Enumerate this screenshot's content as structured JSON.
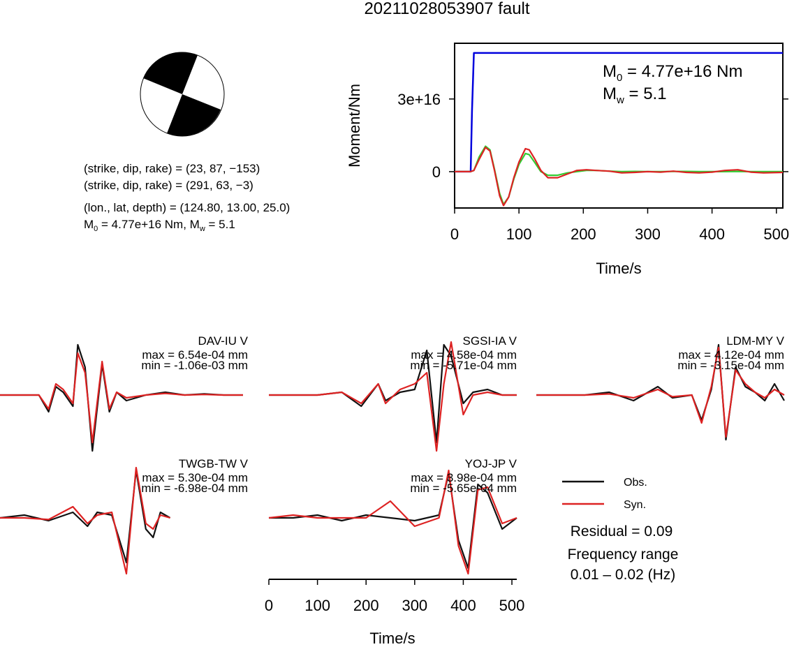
{
  "title": "20211028053907 fault",
  "mechanism": {
    "lines": [
      "(strike, dip, rake) = (23, 87, −153)",
      "(strike, dip, rake) = (291, 63, −3)",
      "(lon., lat, depth) = (124.80, 13.00, 25.0)"
    ],
    "m0_label": "M",
    "m0_sub": "0",
    "m0_rest": " = 4.77e+16 Nm, M",
    "mw_sub": "w",
    "mw_rest": " = 5.1"
  },
  "chart_data": [
    {
      "type": "line",
      "name": "moment-rate-panel",
      "xlabel": "Time/s",
      "ylabel": "Moment/Nm",
      "xlim": [
        0,
        510
      ],
      "ylim": [
        -1.5e+16,
        5.3e+16
      ],
      "xticks": [
        0,
        100,
        200,
        300,
        400,
        500
      ],
      "xtick_labels": [
        "0",
        "100",
        "200",
        "300",
        "400",
        "500"
      ],
      "yticks": [
        0,
        3e+16
      ],
      "ytick_labels": [
        "0",
        "3e+16"
      ],
      "annotation": {
        "m0": {
          "base": "M",
          "sub": "0",
          "rest": " = 4.77e+16 Nm"
        },
        "mw": {
          "base": "M",
          "sub": "w",
          "rest": " = 5.1"
        }
      },
      "series": [
        {
          "color": "#0000dd",
          "style": "cumulative",
          "x": [
            0,
            25,
            27,
            30,
            510
          ],
          "y": [
            0,
            0,
            2.5e+16,
            4.9e+16,
            4.9e+16
          ]
        },
        {
          "color": "#33cc33",
          "style": "rate",
          "x": [
            0,
            25,
            30,
            38,
            48,
            55,
            62,
            70,
            76,
            84,
            92,
            100,
            110,
            116,
            124,
            134,
            145,
            160,
            175,
            190,
            205,
            220,
            240,
            260,
            280,
            300,
            320,
            340,
            360,
            380,
            400,
            420,
            440,
            460,
            480,
            510
          ],
          "y": [
            0,
            0,
            500000000000000.0,
            6000000000000000.0,
            1.05e+16,
            9000000000000000.0,
            1000000000000000.0,
            -9000000000000000.0,
            -1.35e+16,
            -1.05e+16,
            -3000000000000000.0,
            3000000000000000.0,
            7500000000000000.0,
            7000000000000000.0,
            4000000000000000.0,
            0.0,
            -1500000000000000.0,
            -1500000000000000.0,
            -500000000000000.0,
            0.0,
            500000000000000.0,
            500000000000000.0,
            200000000000000.0,
            0.0,
            100000000000000.0,
            0.0,
            0.0,
            100000000000000.0,
            100000000000000.0,
            0.0,
            0.0,
            0.0,
            100000000000000.0,
            0.0,
            0.0,
            0.0
          ]
        },
        {
          "color": "#dd2222",
          "style": "rate",
          "x": [
            0,
            25,
            30,
            38,
            48,
            55,
            62,
            70,
            76,
            84,
            92,
            100,
            110,
            116,
            124,
            134,
            145,
            160,
            175,
            190,
            205,
            220,
            240,
            260,
            280,
            300,
            320,
            340,
            360,
            380,
            400,
            420,
            440,
            460,
            480,
            510
          ],
          "y": [
            0,
            0,
            500000000000000.0,
            5000000000000000.0,
            1e+16,
            8500000000000000.0,
            500000000000000.0,
            -1e+16,
            -1.4e+16,
            -1.05e+16,
            -2500000000000000.0,
            4000000000000000.0,
            9500000000000000.0,
            9000000000000000.0,
            5500000000000000.0,
            500000000000000.0,
            -2500000000000000.0,
            -2500000000000000.0,
            -1000000000000000.0,
            500000000000000.0,
            800000000000000.0,
            500000000000000.0,
            200000000000000.0,
            -500000000000000.0,
            -300000000000000.0,
            0.0,
            -200000000000000.0,
            200000000000000.0,
            -300000000000000.0,
            -500000000000000.0,
            -200000000000000.0,
            500000000000000.0,
            800000000000000.0,
            -200000000000000.0,
            -500000000000000.0,
            -300000000000000.0
          ]
        }
      ]
    },
    {
      "type": "line",
      "name": "waveform-panels",
      "xlabel": "Time/s",
      "xlim": [
        0,
        510
      ],
      "xticks": [
        0,
        100,
        200,
        300,
        400,
        500
      ],
      "xtick_labels": [
        "0",
        "100",
        "200",
        "300",
        "400",
        "500"
      ],
      "stations": [
        {
          "station": "DAV-IU V",
          "max": "max = 6.54e-04 mm",
          "min": "min = -1.06e-03 mm",
          "obs_x": [
            0,
            80,
            100,
            115,
            130,
            150,
            160,
            175,
            190,
            210,
            225,
            240,
            260,
            300,
            340,
            380,
            420,
            460,
            500
          ],
          "obs_y": [
            0.0,
            0.0,
            -0.3,
            0.15,
            0.05,
            -0.2,
            0.9,
            0.5,
            -1.0,
            0.55,
            -0.3,
            0.05,
            -0.1,
            0.0,
            0.05,
            0.0,
            0.02,
            0.0,
            0.0
          ],
          "syn_x": [
            0,
            80,
            100,
            115,
            130,
            150,
            160,
            175,
            190,
            210,
            225,
            240,
            260,
            300,
            340,
            380,
            420,
            460,
            500
          ],
          "syn_y": [
            0.0,
            0.0,
            -0.25,
            0.2,
            0.1,
            -0.15,
            0.75,
            0.4,
            -0.85,
            0.6,
            -0.25,
            0.05,
            -0.05,
            0.0,
            0.03,
            0.0,
            0.01,
            0.0,
            0.0
          ]
        },
        {
          "station": "SGSI-IA V",
          "max": "max = 4.58e-04 mm",
          "min": "min = -5.71e-04 mm",
          "obs_x": [
            0,
            100,
            150,
            190,
            225,
            240,
            270,
            300,
            325,
            345,
            360,
            375,
            400,
            420,
            450,
            480,
            510
          ],
          "obs_y": [
            0.0,
            0.0,
            0.05,
            -0.2,
            0.2,
            -0.1,
            0.05,
            0.1,
            0.8,
            -0.85,
            0.9,
            0.7,
            -0.15,
            0.05,
            0.1,
            0.0,
            0.0
          ],
          "syn_x": [
            0,
            100,
            150,
            190,
            225,
            240,
            270,
            300,
            325,
            345,
            360,
            375,
            400,
            420,
            450,
            480,
            510
          ],
          "syn_y": [
            0.0,
            0.0,
            0.05,
            -0.15,
            0.2,
            -0.15,
            0.1,
            0.2,
            0.4,
            -1.0,
            0.2,
            0.95,
            -0.35,
            0.0,
            0.05,
            0.0,
            0.0
          ]
        },
        {
          "station": "LDM-MY V",
          "max": "max = 4.12e-04 mm",
          "min": "min = -3.15e-04 mm",
          "obs_x": [
            0,
            100,
            150,
            200,
            250,
            280,
            320,
            340,
            360,
            375,
            390,
            410,
            430,
            450,
            470,
            490,
            510
          ],
          "obs_y": [
            0.0,
            0.0,
            0.05,
            -0.1,
            0.15,
            -0.05,
            0.0,
            -0.45,
            0.1,
            0.9,
            -0.8,
            0.5,
            0.15,
            0.05,
            -0.1,
            0.2,
            -0.1
          ],
          "syn_x": [
            0,
            100,
            150,
            200,
            250,
            280,
            320,
            340,
            360,
            375,
            390,
            410,
            430,
            450,
            470,
            490,
            510
          ],
          "syn_y": [
            0.0,
            0.0,
            0.02,
            -0.05,
            0.1,
            -0.03,
            0.0,
            -0.5,
            0.15,
            0.85,
            -0.75,
            0.45,
            0.2,
            0.05,
            -0.05,
            0.1,
            0.0
          ]
        },
        {
          "station": "TWGB-TW V",
          "max": "max = 5.30e-04 mm",
          "min": "min = -6.98e-04 mm",
          "obs_x": [
            0,
            50,
            100,
            150,
            180,
            200,
            230,
            260,
            280,
            300,
            315,
            330,
            350
          ],
          "obs_y": [
            0.0,
            0.05,
            -0.05,
            0.1,
            -0.15,
            0.1,
            0.05,
            -0.8,
            0.85,
            -0.2,
            -0.35,
            0.1,
            0.0
          ],
          "syn_x": [
            0,
            50,
            100,
            150,
            180,
            200,
            230,
            260,
            280,
            300,
            315,
            330,
            350
          ],
          "syn_y": [
            0.0,
            0.0,
            -0.03,
            0.2,
            -0.1,
            0.05,
            0.1,
            -1.0,
            0.9,
            -0.1,
            -0.2,
            0.05,
            0.0
          ]
        },
        {
          "station": "YOJ-JP V",
          "max": "max = 3.98e-04 mm",
          "min": "min = -5.65e-04 mm",
          "obs_x": [
            0,
            50,
            100,
            150,
            200,
            250,
            300,
            350,
            370,
            390,
            410,
            430,
            450,
            480,
            510
          ],
          "obs_y": [
            0.0,
            0.0,
            0.05,
            -0.05,
            0.05,
            0.0,
            -0.05,
            0.05,
            0.8,
            -0.4,
            -0.9,
            0.6,
            0.45,
            -0.2,
            0.0
          ],
          "syn_x": [
            0,
            50,
            100,
            150,
            200,
            250,
            300,
            350,
            370,
            390,
            410,
            430,
            450,
            480,
            510
          ],
          "syn_y": [
            0.0,
            0.05,
            0.0,
            0.0,
            0.0,
            0.3,
            -0.15,
            0.0,
            0.85,
            -0.5,
            -1.0,
            0.5,
            0.55,
            -0.1,
            0.0
          ]
        }
      ]
    }
  ],
  "legend": {
    "obs": "Obs.",
    "syn": "Syn.",
    "obs_color": "#111111",
    "syn_color": "#dd2222"
  },
  "residual": "Residual = 0.09",
  "freq_label": "Frequency range",
  "freq_value": "0.01 – 0.02 (Hz)"
}
